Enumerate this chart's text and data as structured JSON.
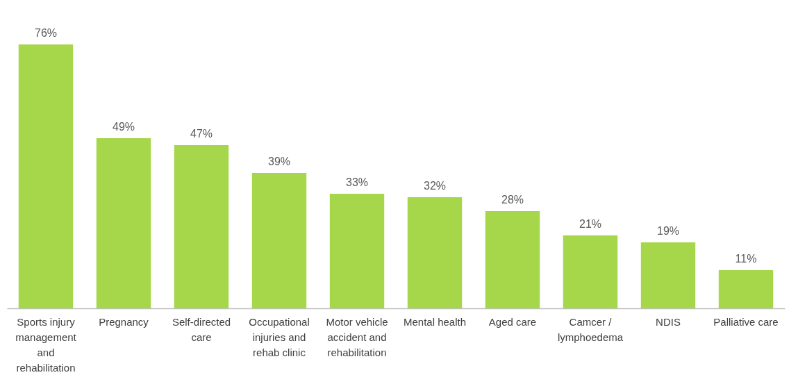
{
  "chart_data": {
    "type": "bar",
    "categories": [
      "Sports injury management and rehabilitation",
      "Pregnancy",
      "Self-directed care",
      "Occupational injuries and rehab clinic",
      "Motor vehicle accident and rehabilitation",
      "Mental health",
      "Aged care",
      "Camcer / lymphoedema",
      "NDIS",
      "Palliative care"
    ],
    "values": [
      76,
      49,
      47,
      39,
      33,
      32,
      28,
      21,
      19,
      11
    ],
    "value_labels": [
      "76%",
      "49%",
      "47%",
      "39%",
      "33%",
      "32%",
      "28%",
      "21%",
      "19%",
      "11%"
    ],
    "color": "#a6d64a"
  }
}
